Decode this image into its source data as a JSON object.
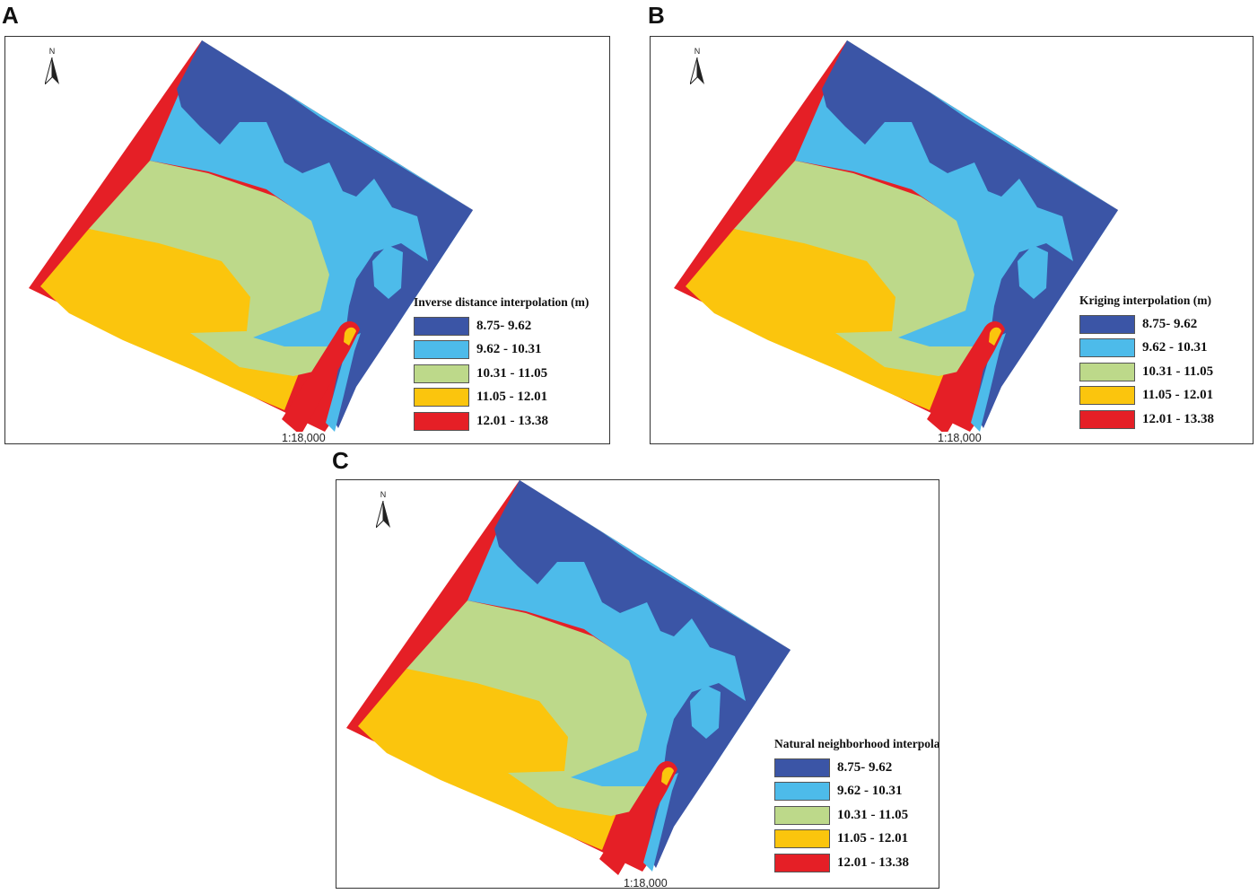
{
  "colors": {
    "c1": "#3b55a6",
    "c2": "#4dbbea",
    "c3": "#bdd98a",
    "c4": "#fbc50d",
    "c5": "#e51f26"
  },
  "panels": [
    {
      "letter": "A",
      "north": "N",
      "legend_title": "Inverse distance interpolation (m)",
      "scale": "1:18,000",
      "classes": [
        "8.75- 9.62",
        "9.62 - 10.31",
        "10.31 - 11.05",
        "11.05 - 12.01",
        "12.01 - 13.38"
      ]
    },
    {
      "letter": "B",
      "north": "N",
      "legend_title": "Kriging interpolation (m)",
      "scale": "1:18,000",
      "classes": [
        "8.75- 9.62",
        "9.62 - 10.31",
        "10.31 - 11.05",
        "11.05 - 12.01",
        "12.01 - 13.38"
      ]
    },
    {
      "letter": "C",
      "north": "N",
      "legend_title": "Natural neighborhood interpolation (m)",
      "scale": "1:18,000",
      "classes": [
        "8.75- 9.62",
        "9.62 - 10.31",
        "10.31 - 11.05",
        "11.05 - 12.01",
        "12.01 - 13.38"
      ]
    }
  ]
}
